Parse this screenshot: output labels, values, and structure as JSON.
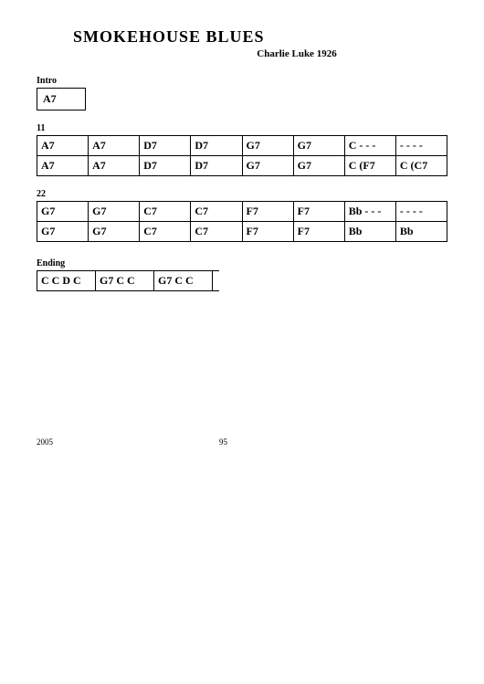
{
  "title": "SMOKEHOUSE BLUES",
  "subtitle": "Charlie Luke 1926",
  "sections": {
    "intro": {
      "label": "Intro",
      "cells": [
        "A7"
      ]
    },
    "bar11": {
      "num": "11",
      "rows": [
        [
          "A7",
          "A7",
          "D7",
          "D7",
          "G7",
          "G7",
          "C - - -",
          "- - - -"
        ],
        [
          "A7",
          "A7",
          "D7",
          "D7",
          "G7",
          "G7",
          "C (F7",
          "C (C7"
        ]
      ]
    },
    "bar22": {
      "num": "22",
      "rows": [
        [
          "G7",
          "G7",
          "C7",
          "C7",
          "F7",
          "F7",
          "Bb - - -",
          "- - - -"
        ],
        [
          "G7",
          "G7",
          "C7",
          "C7",
          "F7",
          "F7",
          "Bb",
          "Bb"
        ]
      ]
    },
    "ending": {
      "label": "Ending",
      "cells": [
        "C C D C",
        "G7 C C",
        "G7 C C"
      ]
    }
  },
  "footer": {
    "year": "2005",
    "page": "95"
  }
}
